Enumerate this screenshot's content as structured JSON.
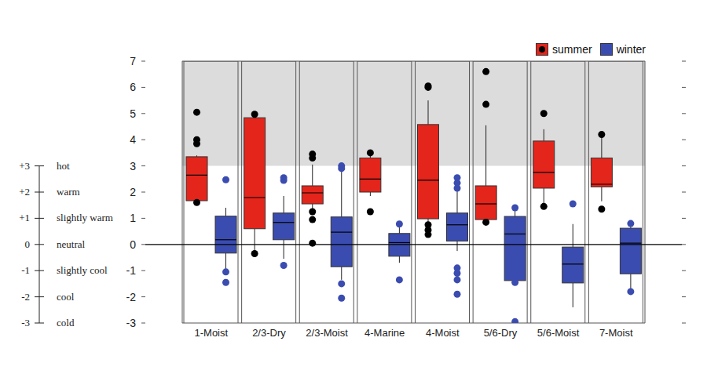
{
  "chart_data": {
    "type": "box",
    "categories": [
      "1-Moist",
      "2/3-Dry",
      "2/3-Moist",
      "4-Marine",
      "4-Moist",
      "5/6-Dry",
      "5/6-Moist",
      "7-Moist"
    ],
    "series": [
      {
        "name": "summer",
        "color": "#e3251c",
        "min": [
          1.65,
          -0.3,
          1.16,
          1.85,
          0.6,
          0.86,
          1.5,
          1.65
        ],
        "q1": [
          1.67,
          0.6,
          1.55,
          2.0,
          0.98,
          0.95,
          2.15,
          2.2
        ],
        "median": [
          2.65,
          1.79,
          1.97,
          2.5,
          2.45,
          1.55,
          2.75,
          2.3
        ],
        "q3": [
          3.35,
          4.84,
          2.24,
          3.3,
          4.58,
          2.24,
          3.95,
          3.3
        ],
        "max": [
          3.4,
          4.9,
          3.05,
          3.5,
          5.5,
          4.55,
          4.4,
          4.2
        ],
        "outliers": [
          [
            5.05,
            4.0,
            3.85,
            1.6
          ],
          [
            4.97,
            -0.35
          ],
          [
            3.45,
            3.3,
            1.25,
            0.95,
            0.05
          ],
          [
            3.5,
            1.25
          ],
          [
            6.05,
            6.0,
            0.75,
            0.55,
            0.38
          ],
          [
            6.6,
            5.35,
            0.85
          ],
          [
            5.0,
            1.45
          ],
          [
            4.2,
            1.35
          ]
        ]
      },
      {
        "name": "winter",
        "color": "#3b4cb0",
        "min": [
          -0.93,
          -0.55,
          -1.35,
          -0.7,
          -0.25,
          -1.45,
          -2.4,
          -1.75
        ],
        "q1": [
          -0.33,
          0.18,
          -0.85,
          -0.45,
          0.13,
          -1.38,
          -1.47,
          -1.12
        ],
        "median": [
          0.18,
          0.84,
          0.47,
          0.07,
          0.75,
          0.4,
          -0.75,
          0.05
        ],
        "q3": [
          1.08,
          1.2,
          1.05,
          0.42,
          1.2,
          1.07,
          -0.1,
          0.62
        ],
        "max": [
          1.4,
          1.85,
          3.0,
          0.78,
          2.48,
          1.4,
          0.78,
          0.8
        ],
        "outliers": [
          [
            2.47,
            -1.05,
            -1.45
          ],
          [
            2.55,
            2.45,
            -0.8
          ],
          [
            3.0,
            2.9,
            -1.5,
            -2.05
          ],
          [
            0.78,
            -1.35
          ],
          [
            2.55,
            2.35,
            2.15,
            -0.9,
            -1.1,
            -1.35,
            -1.9
          ],
          [
            1.4,
            -1.45,
            -2.95
          ],
          [
            1.55
          ],
          [
            0.8,
            -1.8
          ]
        ]
      }
    ],
    "ylim": [
      -3,
      7
    ],
    "yticks": [
      -3,
      -2,
      -1,
      0,
      1,
      2,
      3,
      4,
      5,
      6,
      7
    ],
    "band": [
      3,
      7
    ],
    "baseline": 0,
    "legend": "top right",
    "scale": [
      {
        "value": 3,
        "label": "+3",
        "text": "hot"
      },
      {
        "value": 2,
        "label": "+2",
        "text": "warm"
      },
      {
        "value": 1,
        "label": "+1",
        "text": "slightly warm"
      },
      {
        "value": 0,
        "label": "0",
        "text": "neutral"
      },
      {
        "value": -1,
        "label": "-1",
        "text": "slightly cool"
      },
      {
        "value": -2,
        "label": "-2",
        "text": "cool"
      },
      {
        "value": -3,
        "label": "-3",
        "text": "cold"
      }
    ]
  }
}
